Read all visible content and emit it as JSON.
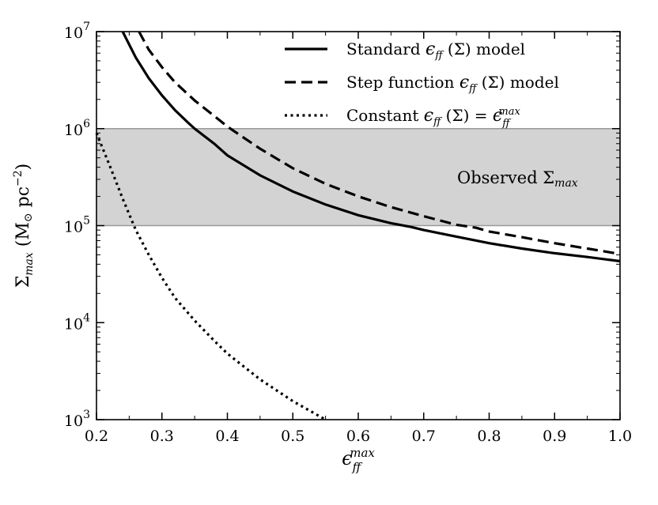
{
  "chart_data": {
    "type": "line",
    "xlabel": "ϵff^max",
    "ylabel": "Σmax (M⊙ pc⁻²)",
    "xlim": [
      0.2,
      1.0
    ],
    "ylim_log10": [
      3,
      7
    ],
    "y_scale": "log",
    "x_ticks": [
      {
        "value": 0.2,
        "label": "0.2"
      },
      {
        "value": 0.3,
        "label": "0.3"
      },
      {
        "value": 0.4,
        "label": "0.4"
      },
      {
        "value": 0.5,
        "label": "0.5"
      },
      {
        "value": 0.6,
        "label": "0.6"
      },
      {
        "value": 0.7,
        "label": "0.7"
      },
      {
        "value": 0.8,
        "label": "0.8"
      },
      {
        "value": 0.9,
        "label": "0.9"
      },
      {
        "value": 1.0,
        "label": "1.0"
      }
    ],
    "y_ticks": [
      {
        "exp": 3,
        "base": "10",
        "power": "3"
      },
      {
        "exp": 4,
        "base": "10",
        "power": "4"
      },
      {
        "exp": 5,
        "base": "10",
        "power": "5"
      },
      {
        "exp": 6,
        "base": "10",
        "power": "6"
      },
      {
        "exp": 7,
        "base": "10",
        "power": "7"
      }
    ],
    "observed_band": {
      "label": "Observed Σmax",
      "y_low": 100000,
      "y_high": 1000000,
      "color": "#d3d3d3"
    },
    "series": [
      {
        "name": "Standard ϵff (Σ) model",
        "style": "solid",
        "color": "#000000",
        "points": [
          [
            0.24,
            10000000
          ],
          [
            0.26,
            5400000
          ],
          [
            0.28,
            3300000
          ],
          [
            0.3,
            2200000
          ],
          [
            0.32,
            1550000
          ],
          [
            0.34,
            1150000
          ],
          [
            0.35,
            1000000
          ],
          [
            0.38,
            700000
          ],
          [
            0.4,
            530000
          ],
          [
            0.45,
            330000
          ],
          [
            0.5,
            225000
          ],
          [
            0.55,
            165000
          ],
          [
            0.6,
            128000
          ],
          [
            0.65,
            106000
          ],
          [
            0.68,
            97000
          ],
          [
            0.7,
            90000
          ],
          [
            0.75,
            77000
          ],
          [
            0.8,
            66000
          ],
          [
            0.85,
            58000
          ],
          [
            0.9,
            52000
          ],
          [
            0.95,
            47500
          ],
          [
            1.0,
            43000
          ]
        ]
      },
      {
        "name": "Step function ϵff (Σ) model",
        "style": "dashed",
        "color": "#000000",
        "points": [
          [
            0.265,
            10000000
          ],
          [
            0.28,
            6500000
          ],
          [
            0.3,
            4300000
          ],
          [
            0.32,
            3000000
          ],
          [
            0.35,
            1950000
          ],
          [
            0.38,
            1350000
          ],
          [
            0.4,
            1050000
          ],
          [
            0.42,
            850000
          ],
          [
            0.45,
            620000
          ],
          [
            0.5,
            390000
          ],
          [
            0.55,
            270000
          ],
          [
            0.6,
            200000
          ],
          [
            0.65,
            155000
          ],
          [
            0.7,
            125000
          ],
          [
            0.75,
            102000
          ],
          [
            0.78,
            95000
          ],
          [
            0.8,
            87000
          ],
          [
            0.85,
            76000
          ],
          [
            0.9,
            66000
          ],
          [
            0.95,
            58000
          ],
          [
            1.0,
            51000
          ]
        ]
      },
      {
        "name": "Constant ϵff (Σ) = ϵff^max",
        "style": "dotted",
        "color": "#000000",
        "points": [
          [
            0.2,
            900000
          ],
          [
            0.22,
            420000
          ],
          [
            0.24,
            190000
          ],
          [
            0.26,
            90000
          ],
          [
            0.28,
            50000
          ],
          [
            0.3,
            29000
          ],
          [
            0.32,
            18000
          ],
          [
            0.35,
            10500
          ],
          [
            0.38,
            6500
          ],
          [
            0.4,
            4800
          ],
          [
            0.45,
            2600
          ],
          [
            0.5,
            1550
          ],
          [
            0.55,
            1000
          ]
        ]
      }
    ],
    "legend": [
      {
        "prefix": "Standard ",
        "eps": "ϵ",
        "sub": "ff",
        "suffix": " (Σ) model"
      },
      {
        "prefix": "Step function ",
        "eps": "ϵ",
        "sub": "ff",
        "suffix": " (Σ) model"
      },
      {
        "prefix": "Constant ",
        "eps": "ϵ",
        "sub": "ff",
        "mid": " (Σ) = ",
        "eps2": "ϵ",
        "sub2": "ff",
        "sup2": "max"
      }
    ],
    "legend_position": "top-right"
  }
}
